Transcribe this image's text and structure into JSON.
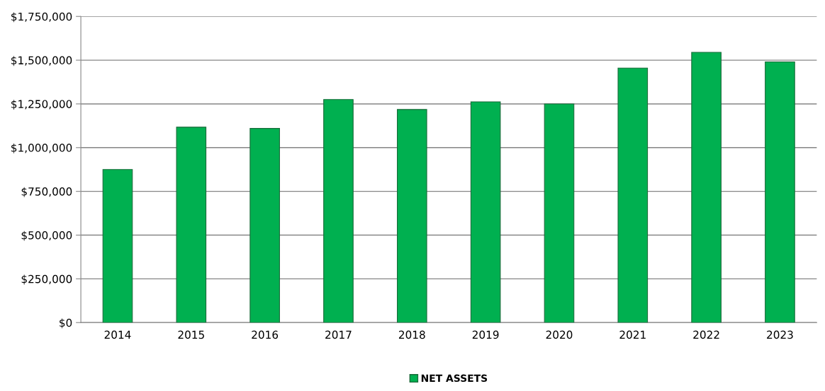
{
  "chart_data": {
    "type": "bar",
    "categories": [
      "2014",
      "2015",
      "2016",
      "2017",
      "2018",
      "2019",
      "2020",
      "2021",
      "2022",
      "2023"
    ],
    "series": [
      {
        "name": "NET ASSETS",
        "color": "#00b050",
        "values": [
          875000,
          1117000,
          1110000,
          1275000,
          1218000,
          1262000,
          1250000,
          1455000,
          1545000,
          1490000
        ]
      }
    ],
    "ylim": [
      0,
      1750000
    ],
    "yticks": [
      {
        "value": 0,
        "label": "$0"
      },
      {
        "value": 250000,
        "label": "$250,000"
      },
      {
        "value": 500000,
        "label": "$500,000"
      },
      {
        "value": 750000,
        "label": "$750,000"
      },
      {
        "value": 1000000,
        "label": "$1,000,000"
      },
      {
        "value": 1250000,
        "label": "$1,250,000"
      },
      {
        "value": 1500000,
        "label": "$1,500,000"
      },
      {
        "value": 1750000,
        "label": "$1,750,000"
      }
    ],
    "grid": "y",
    "legend": "bottom"
  }
}
